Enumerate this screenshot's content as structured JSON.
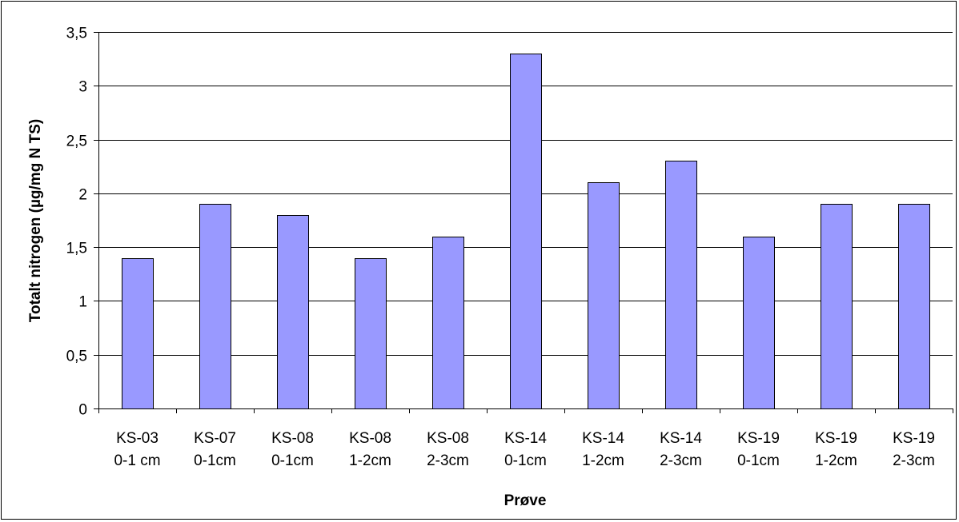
{
  "chart_data": {
    "type": "bar",
    "title": "",
    "xlabel": "Prøve",
    "ylabel": "Totalt nitrogen (µg/mg N TS)",
    "categories": [
      [
        "KS-03",
        "0-1 cm"
      ],
      [
        "KS-07",
        "0-1cm"
      ],
      [
        "KS-08",
        "0-1cm"
      ],
      [
        "KS-08",
        "1-2cm"
      ],
      [
        "KS-08",
        "2-3cm"
      ],
      [
        "KS-14",
        "0-1cm"
      ],
      [
        "KS-14",
        "1-2cm"
      ],
      [
        "KS-14",
        "2-3cm"
      ],
      [
        "KS-19",
        "0-1cm"
      ],
      [
        "KS-19",
        "1-2cm"
      ],
      [
        "KS-19",
        "2-3cm"
      ]
    ],
    "values": [
      1.4,
      1.9,
      1.8,
      1.4,
      1.6,
      3.3,
      2.1,
      2.3,
      1.6,
      1.9,
      1.9
    ],
    "ylim": [
      0,
      3.5
    ],
    "yticks": [
      "0",
      "0,5",
      "1",
      "1,5",
      "2",
      "2,5",
      "3",
      "3,5"
    ],
    "grid": true,
    "legend": "none",
    "colors": {
      "bar_fill": "#9999ff",
      "bar_stroke": "#000000",
      "grid": "#000000"
    }
  }
}
